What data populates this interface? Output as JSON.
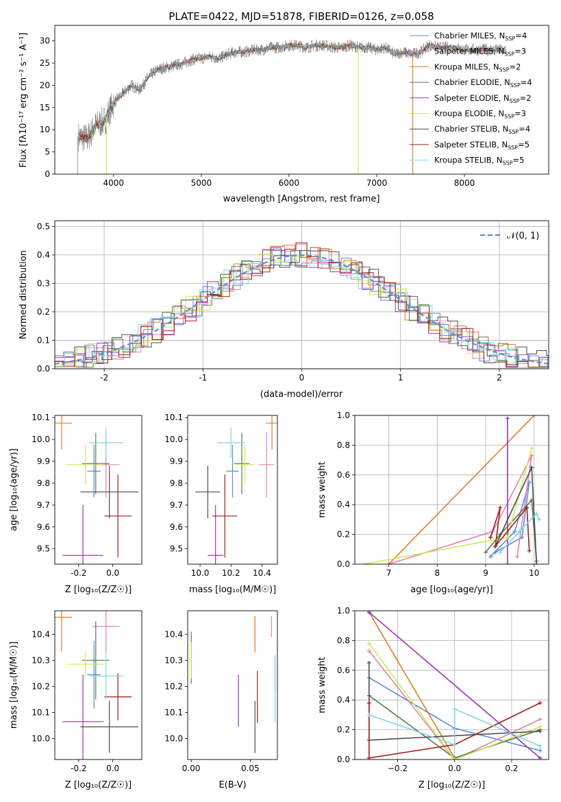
{
  "figure": {
    "title": "PLATE=0422, MJD=51878, FIBERID=0126, z=0.058"
  },
  "models": [
    {
      "name": "Chabrier MILES, N$_{SSP}$=4",
      "label_main": "Chabrier MILES, N",
      "label_sub": "SSP",
      "label_tail": "=4",
      "color": "#5b8bd9"
    },
    {
      "name": "Salpeter MILES, N$_{SSP}$=3",
      "label_main": "Salpeter MILES, N",
      "label_sub": "SSP",
      "label_tail": "=3",
      "color": "#e67fb3"
    },
    {
      "name": "Kroupa MILES, N$_{SSP}$=2",
      "label_main": "Kroupa MILES, N",
      "label_sub": "SSP",
      "label_tail": "=2",
      "color": "#e07b24"
    },
    {
      "name": "Chabrier ELODIE, N$_{SSP}$=4",
      "label_main": "Chabrier ELODIE, N",
      "label_sub": "SSP",
      "label_tail": "=4",
      "color": "#557a55"
    },
    {
      "name": "Salpeter ELODIE, N$_{SSP}$=2",
      "label_main": "Salpeter ELODIE, N",
      "label_sub": "SSP",
      "label_tail": "=2",
      "color": "#9b30b5"
    },
    {
      "name": "Kroupa ELODIE, N$_{SSP}$=3",
      "label_main": "Kroupa ELODIE, N",
      "label_sub": "SSP",
      "label_tail": "=3",
      "color": "#ccec4a"
    },
    {
      "name": "Chabrier STELIB, N$_{SSP}$=4",
      "label_main": "Chabrier STELIB, N",
      "label_sub": "SSP",
      "label_tail": "=4",
      "color": "#4a4a4a"
    },
    {
      "name": "Salpeter STELIB, N$_{SSP}$=5",
      "label_main": "Salpeter STELIB, N",
      "label_sub": "SSP",
      "label_tail": "=5",
      "color": "#a31a1a"
    },
    {
      "name": "Kroupa STELIB, N$_{SSP}$=5",
      "label_main": "Kroupa STELIB, N",
      "label_sub": "SSP",
      "label_tail": "=5",
      "color": "#7fd6de"
    }
  ],
  "chart_data": [
    {
      "type": "line",
      "id": "spectrum",
      "xlabel": "wavelength [Angstrom, rest frame]",
      "ylabel": "Flux [f$_\\lambda$10$^{-17}$ erg cm$^{-2}$ s$^{-1}$ A$^{-1}$]",
      "xlim": [
        3330,
        8960
      ],
      "ylim": [
        0,
        33.5
      ],
      "xticks": [
        4000,
        5000,
        6000,
        7000,
        8000
      ],
      "yticks": [
        0,
        5,
        10,
        15,
        20,
        25,
        30
      ],
      "x": [
        3600,
        3700,
        3800,
        3900,
        4000,
        4100,
        4200,
        4300,
        4400,
        4500,
        4600,
        4700,
        4800,
        4900,
        5000,
        5100,
        5200,
        5300,
        5400,
        5500,
        5600,
        5700,
        5800,
        5900,
        6000,
        6100,
        6200,
        6300,
        6400,
        6500,
        6600,
        6700,
        6800,
        6900,
        7000,
        7100,
        7200,
        7300,
        7400,
        7500,
        7600,
        7700,
        7800,
        7900,
        8000,
        8100,
        8200,
        8300,
        8400,
        8500
      ],
      "series": [
        {
          "name": "data",
          "values": [
            8.5,
            8,
            11,
            12,
            16,
            18,
            20,
            19,
            22,
            23.5,
            24,
            24.5,
            25,
            25.8,
            26,
            26.5,
            26,
            27,
            27.5,
            27.5,
            28,
            28,
            28.5,
            28.5,
            29,
            29,
            28.5,
            29,
            29,
            28.5,
            28.5,
            29,
            28.5,
            28.5,
            28,
            28.5,
            27,
            27.5,
            27,
            27.5,
            29,
            28.5,
            28.5,
            28.5,
            28,
            28,
            28,
            28,
            28,
            28
          ]
        },
        {
          "name": "model",
          "values": [
            8.8,
            8.5,
            11.5,
            12.5,
            16.5,
            18.5,
            20.3,
            19.5,
            22.3,
            23.8,
            24.3,
            24.8,
            25.3,
            26,
            26.3,
            26.7,
            26.5,
            27.2,
            27.7,
            27.8,
            28.2,
            28.3,
            28.7,
            28.8,
            29.1,
            29.1,
            28.8,
            29.1,
            29.1,
            28.8,
            28.8,
            29,
            28.7,
            28.6,
            28.3,
            28.6,
            27.5,
            27.8,
            27.5,
            27.7,
            29,
            28.7,
            28.7,
            28.6,
            28.3,
            28.2,
            28.2,
            28.1,
            28.1,
            28
          ]
        }
      ]
    },
    {
      "type": "line",
      "id": "residuals",
      "xlabel": "(data-model)/error",
      "ylabel": "Normed distribution",
      "xlim": [
        -2.5,
        2.5
      ],
      "ylim": [
        0,
        0.52
      ],
      "xticks": [
        -2,
        -1,
        0,
        1,
        2
      ],
      "yticks": [
        0.0,
        0.1,
        0.2,
        0.3,
        0.4,
        0.5
      ],
      "legend": "$\\mathcal{N}(0,1)$",
      "legend_position": "top-right",
      "grid": true
    },
    {
      "type": "scatter",
      "id": "z-age",
      "xlabel": "Z [log$_{10}$($Z/Z_\\odot$)]",
      "ylabel": "age  [log$_{10}$($age/yr$)]",
      "xlim": [
        -0.34,
        0.17
      ],
      "ylim": [
        9.43,
        10.11
      ],
      "xticks": [
        -0.2,
        0.0
      ],
      "yticks": [
        9.5,
        9.6,
        9.7,
        9.8,
        9.9,
        10.0,
        10.1
      ],
      "points": [
        {
          "x": -0.11,
          "y": 9.855,
          "xerr": 0.04,
          "yerr": 0.12
        },
        {
          "x": -0.04,
          "y": 9.885,
          "xerr": 0.08,
          "yerr": 0.15
        },
        {
          "x": -0.3,
          "y": 10.075,
          "xerr": 0.06,
          "yerr": 0.12
        },
        {
          "x": -0.1,
          "y": 9.89,
          "xerr": 0.08,
          "yerr": 0.14
        },
        {
          "x": -0.175,
          "y": 9.47,
          "xerr": 0.12,
          "yerr": 0.23
        },
        {
          "x": -0.16,
          "y": 9.885,
          "xerr": 0.11,
          "yerr": 0.09
        },
        {
          "x": -0.02,
          "y": 9.76,
          "xerr": 0.17,
          "yerr": 0.12
        },
        {
          "x": 0.03,
          "y": 9.65,
          "xerr": 0.08,
          "yerr": 0.19
        },
        {
          "x": -0.04,
          "y": 9.985,
          "xerr": 0.1,
          "yerr": 0.07
        }
      ]
    },
    {
      "type": "scatter",
      "id": "mass-age",
      "xlabel": "mass [log$_{10}$($M/M_\\odot$)]",
      "ylabel": "",
      "xlim": [
        9.92,
        10.5
      ],
      "ylim": [
        9.43,
        10.11
      ],
      "xticks": [
        10.0,
        10.2,
        10.4
      ],
      "yticks": [
        9.5,
        9.6,
        9.7,
        9.8,
        9.9,
        10.0,
        10.1
      ],
      "points": [
        {
          "x": 10.21,
          "y": 9.855,
          "xerr": 0.04,
          "yerr": 0.12
        },
        {
          "x": 10.43,
          "y": 9.885,
          "xerr": 0.05,
          "yerr": 0.15
        },
        {
          "x": 10.465,
          "y": 10.075,
          "xerr": 0.04,
          "yerr": 0.12
        },
        {
          "x": 10.27,
          "y": 9.89,
          "xerr": 0.05,
          "yerr": 0.14
        },
        {
          "x": 10.1,
          "y": 9.47,
          "xerr": 0.05,
          "yerr": 0.23
        },
        {
          "x": 10.29,
          "y": 9.885,
          "xerr": 0.06,
          "yerr": 0.09
        },
        {
          "x": 10.05,
          "y": 9.76,
          "xerr": 0.08,
          "yerr": 0.12
        },
        {
          "x": 10.16,
          "y": 9.65,
          "xerr": 0.08,
          "yerr": 0.19
        },
        {
          "x": 10.2,
          "y": 9.985,
          "xerr": 0.09,
          "yerr": 0.07
        }
      ]
    },
    {
      "type": "line",
      "id": "age-weight",
      "xlabel": "age  [log$_{10}$($age/yr$)]",
      "ylabel": "mass weight",
      "xlim": [
        6.3,
        10.3
      ],
      "ylim": [
        0,
        1
      ],
      "xticks": [
        7,
        8,
        9,
        10
      ],
      "yticks": [
        0.0,
        0.2,
        0.4,
        0.6,
        0.8,
        1.0
      ],
      "grid": true
    },
    {
      "type": "scatter",
      "id": "z-mass",
      "xlabel": "Z [log$_{10}$($Z/Z_\\odot$)]",
      "ylabel": "mass [log$_{10}$($M/M_\\odot$)]",
      "xlim": [
        -0.34,
        0.17
      ],
      "ylim": [
        9.92,
        10.49
      ],
      "xticks": [
        -0.2,
        0.0
      ],
      "yticks": [
        10.0,
        10.1,
        10.2,
        10.3,
        10.4
      ],
      "points": [
        {
          "x": -0.11,
          "y": 10.245,
          "xerr": 0.04,
          "yerr": 0.13
        },
        {
          "x": -0.04,
          "y": 10.43,
          "xerr": 0.08,
          "yerr": 0.1
        },
        {
          "x": -0.3,
          "y": 10.465,
          "xerr": 0.06,
          "yerr": 0.13
        },
        {
          "x": -0.1,
          "y": 10.3,
          "xerr": 0.08,
          "yerr": 0.15
        },
        {
          "x": -0.175,
          "y": 10.065,
          "xerr": 0.12,
          "yerr": 0.18
        },
        {
          "x": -0.16,
          "y": 10.285,
          "xerr": 0.11,
          "yerr": 0.05
        },
        {
          "x": -0.02,
          "y": 10.045,
          "xerr": 0.17,
          "yerr": 0.1
        },
        {
          "x": 0.03,
          "y": 10.16,
          "xerr": 0.08,
          "yerr": 0.09
        },
        {
          "x": -0.04,
          "y": 10.24,
          "xerr": 0.1,
          "yerr": 0.09
        }
      ]
    },
    {
      "type": "scatter",
      "id": "ebv-mass",
      "xlabel": "E(B-V)",
      "ylabel": "",
      "xlim": [
        -0.003,
        0.073
      ],
      "ylim": [
        9.92,
        10.49
      ],
      "xticks": [
        0.0,
        0.05
      ],
      "yticks": [
        10.0,
        10.1,
        10.2,
        10.3,
        10.4
      ],
      "points": [
        {
          "x": 0.071,
          "y": 10.245,
          "yerr": 0.07
        },
        {
          "x": 0.068,
          "y": 10.43,
          "yerr": 0.04
        },
        {
          "x": 0.054,
          "y": 10.4,
          "yerr": 0.07
        },
        {
          "x": 0.0,
          "y": 10.31,
          "yerr": 0.1
        },
        {
          "x": 0.04,
          "y": 10.145,
          "yerr": 0.1
        },
        {
          "x": 0.0,
          "y": 10.3,
          "yerr": 0.07
        },
        {
          "x": 0.054,
          "y": 10.045,
          "yerr": 0.1
        },
        {
          "x": 0.056,
          "y": 10.16,
          "yerr": 0.1
        },
        {
          "x": 0.071,
          "y": 10.19,
          "yerr": 0.13
        }
      ]
    },
    {
      "type": "line",
      "id": "z-weight",
      "xlabel": "Z [log$_{10}$($Z/Z_\\odot$)]",
      "ylabel": "mass weight",
      "xlim": [
        -0.35,
        0.33
      ],
      "ylim": [
        0,
        1
      ],
      "xticks": [
        -0.2,
        0.0,
        0.2
      ],
      "yticks": [
        0.0,
        0.2,
        0.4,
        0.6,
        0.8,
        1.0
      ],
      "grid": true
    }
  ]
}
